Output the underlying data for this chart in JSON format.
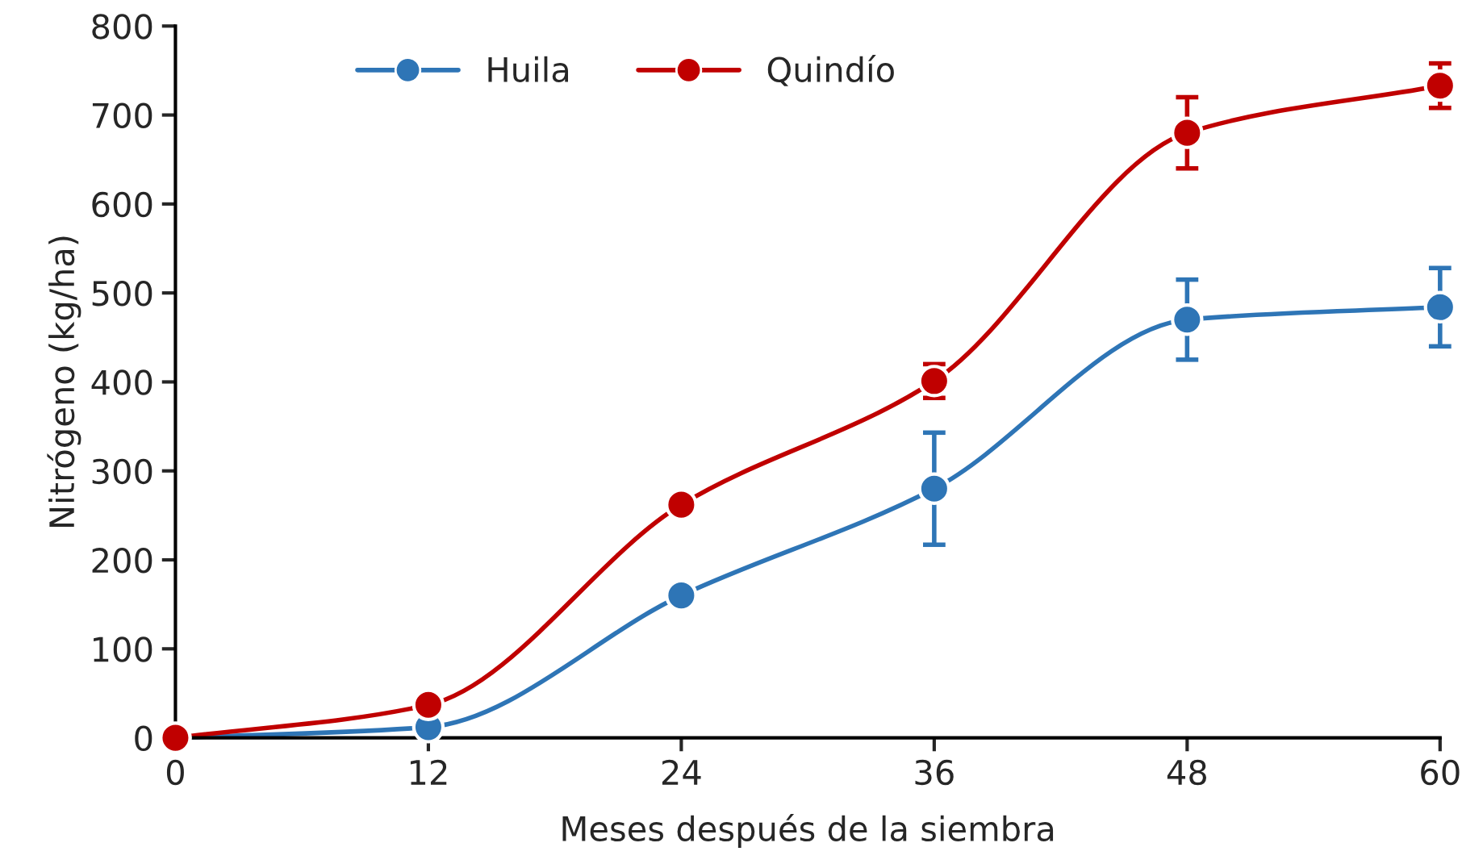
{
  "chart_data": {
    "type": "line",
    "xlabel": "Meses después de la siembra",
    "ylabel": "Nitrógeno (kg/ha)",
    "x": [
      0,
      12,
      24,
      36,
      48,
      60
    ],
    "xlim": [
      0,
      60
    ],
    "xticks": [
      0,
      12,
      24,
      36,
      48,
      60
    ],
    "ylim": [
      0,
      800
    ],
    "yticks": [
      0,
      100,
      200,
      300,
      400,
      500,
      600,
      700,
      800
    ],
    "grid": false,
    "legend": "top left",
    "marker": "circle",
    "line_style": "solid",
    "series": [
      {
        "name": "Huila",
        "color": "#2e75b6",
        "values": [
          0,
          12,
          160,
          280,
          470,
          484
        ],
        "errors": [
          null,
          null,
          null,
          63,
          45,
          44
        ]
      },
      {
        "name": "Quindío",
        "color": "#c00000",
        "values": [
          0,
          37,
          262,
          401,
          680,
          733
        ],
        "errors": [
          null,
          null,
          null,
          19,
          40,
          25
        ]
      }
    ]
  }
}
